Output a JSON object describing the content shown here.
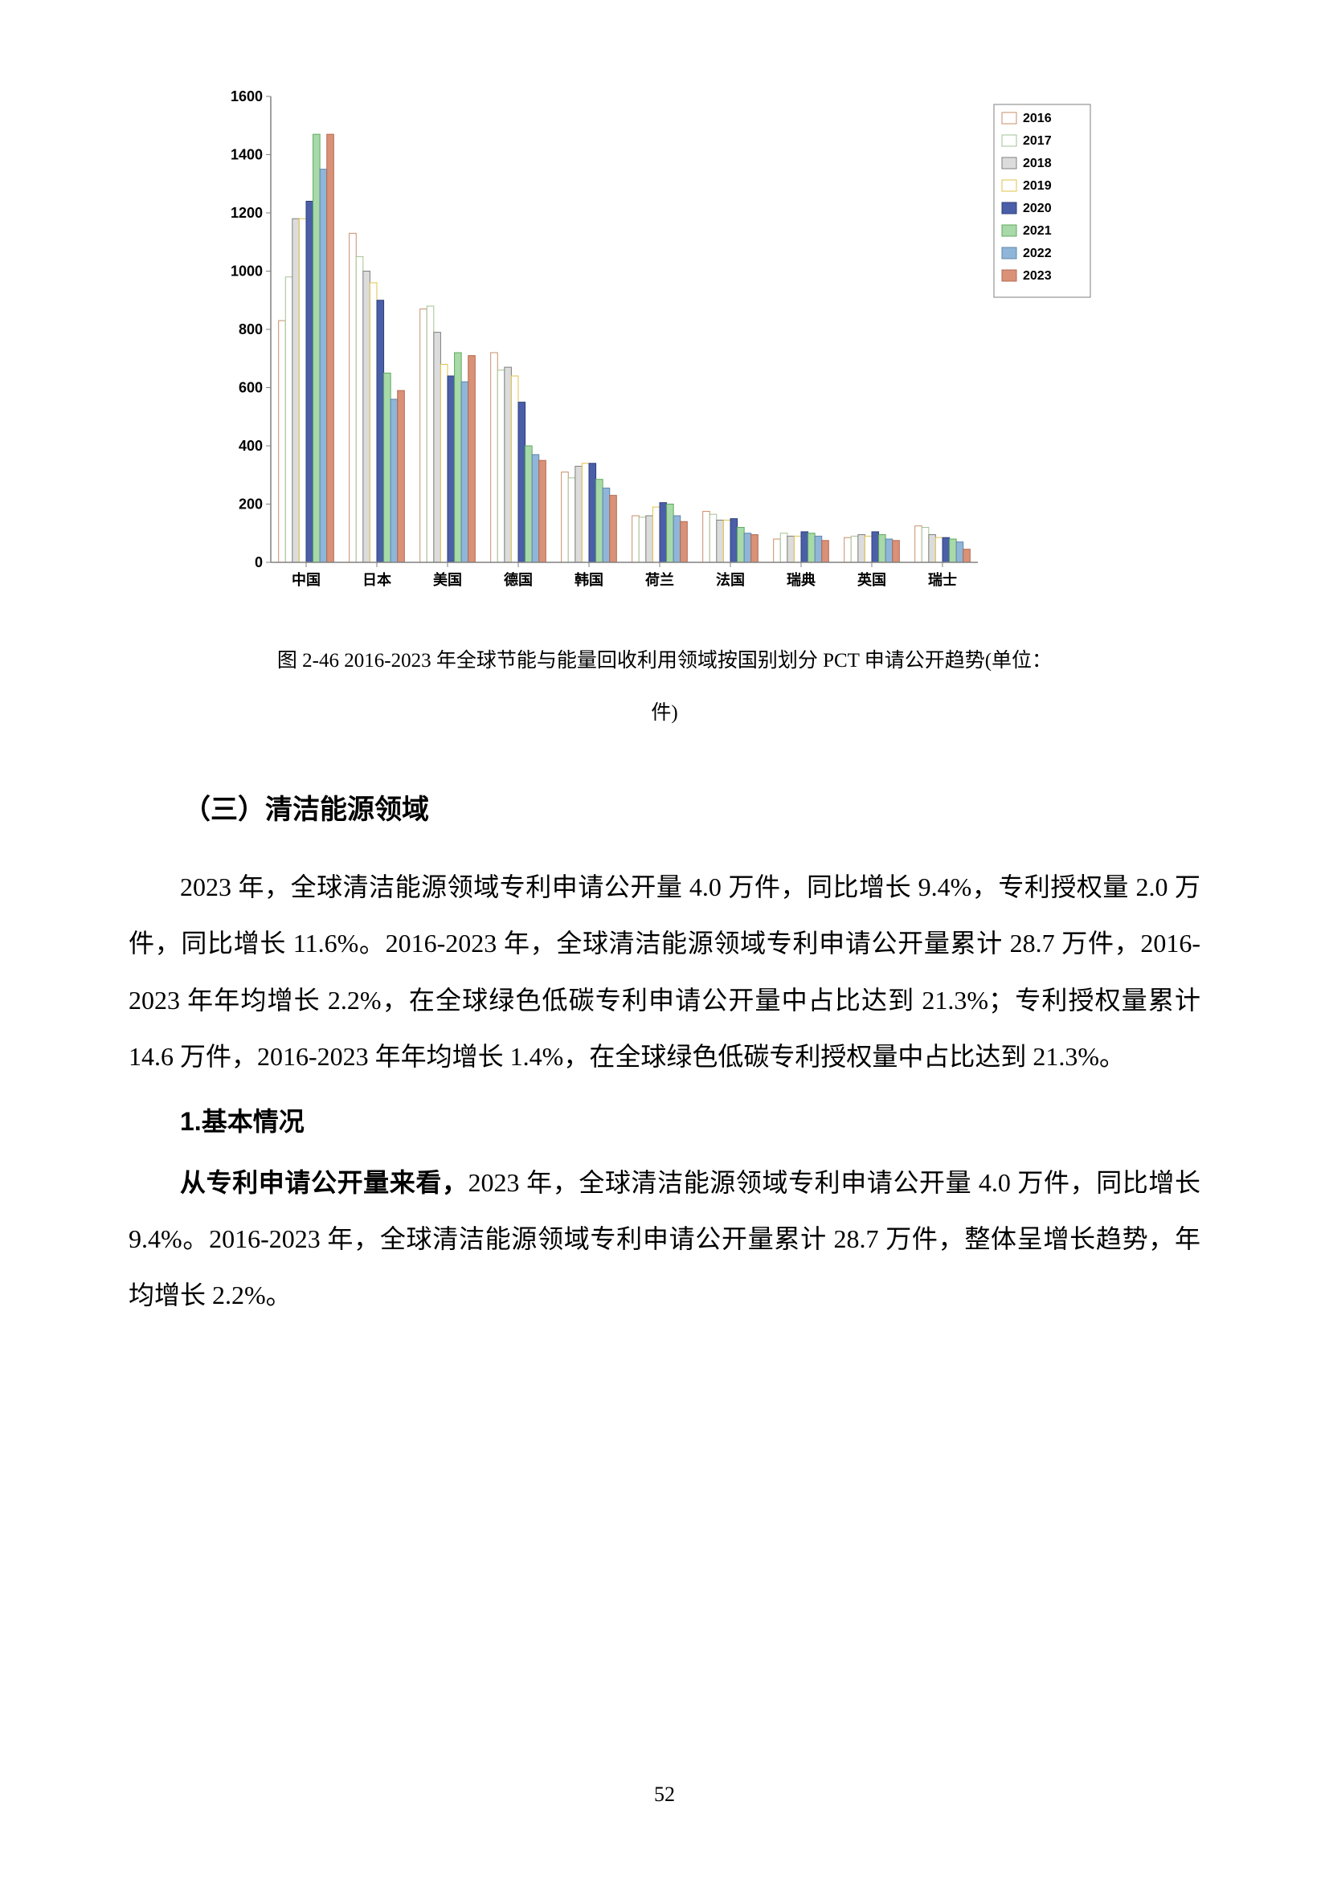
{
  "chart": {
    "type": "bar",
    "ylim": [
      0,
      1600
    ],
    "ytick_step": 200,
    "bar_gap": 0,
    "group_gap_ratio": 0.22,
    "plot_background": "#ffffff",
    "axis_line_color": "#808080",
    "grid_visible": false,
    "axis_fontsize": 18,
    "tick_length": 6,
    "y_axis_label_fontsize": 18,
    "categories": [
      "中国",
      "日本",
      "美国",
      "德国",
      "韩国",
      "荷兰",
      "法国",
      "瑞典",
      "英国",
      "瑞士"
    ],
    "series": [
      {
        "label": "2016",
        "fill": "#ffffff",
        "stroke": "#c78f6b",
        "hatch": "none"
      },
      {
        "label": "2017",
        "fill": "#ffffff",
        "stroke": "#a3c293",
        "hatch": "none"
      },
      {
        "label": "2018",
        "fill": "#dcdcdc",
        "stroke": "#7f7f7f",
        "hatch": "none"
      },
      {
        "label": "2019",
        "fill": "#ffffff",
        "stroke": "#e0c24a",
        "hatch": "none"
      },
      {
        "label": "2020",
        "fill": "#4a5fa8",
        "stroke": "#2f3f78",
        "hatch": "none"
      },
      {
        "label": "2021",
        "fill": "#a8d9a8",
        "stroke": "#5faa5f",
        "hatch": "none"
      },
      {
        "label": "2022",
        "fill": "#8fb6d9",
        "stroke": "#5f86a9",
        "hatch": "none"
      },
      {
        "label": "2023",
        "fill": "#d99177",
        "stroke": "#b46a50",
        "hatch": "none"
      }
    ],
    "values": [
      [
        830,
        980,
        1180,
        1180,
        1240,
        1470,
        1350,
        1470
      ],
      [
        1130,
        1050,
        1000,
        960,
        900,
        650,
        560,
        590
      ],
      [
        870,
        880,
        790,
        680,
        640,
        720,
        620,
        710
      ],
      [
        720,
        660,
        670,
        640,
        550,
        400,
        370,
        350
      ],
      [
        310,
        290,
        330,
        340,
        340,
        285,
        255,
        230
      ],
      [
        160,
        155,
        160,
        190,
        205,
        200,
        160,
        140
      ],
      [
        175,
        165,
        145,
        145,
        150,
        120,
        100,
        95
      ],
      [
        80,
        100,
        90,
        90,
        105,
        100,
        90,
        75
      ],
      [
        85,
        90,
        95,
        90,
        105,
        95,
        80,
        75
      ],
      [
        125,
        120,
        95,
        85,
        85,
        80,
        70,
        45
      ]
    ],
    "legend_border_color": "#7f7f7f",
    "legend_background": "#ffffff"
  },
  "chart_caption_1": "图 2-46 2016-2023 年全球节能与能量回收利用领域按国别划分 PCT 申请公开趋势(单位：",
  "chart_caption_2": "件)",
  "section_heading": "（三）清洁能源领域",
  "para1": "2023 年，全球清洁能源领域专利申请公开量 4.0 万件，同比增长 9.4%，专利授权量 2.0 万件，同比增长 11.6%。2016-2023 年，全球清洁能源领域专利申请公开量累计 28.7 万件，2016-2023 年年均增长 2.2%，在全球绿色低碳专利申请公开量中占比达到 21.3%；专利授权量累计 14.6 万件，2016-2023 年年均增长 1.4%，在全球绿色低碳专利授权量中占比达到 21.3%。",
  "sub_heading": "1.基本情况",
  "para2_bold": "从专利申请公开量来看，",
  "para2_rest": "2023 年，全球清洁能源领域专利申请公开量 4.0 万件，同比增长 9.4%。2016-2023 年，全球清洁能源领域专利申请公开量累计 28.7 万件，整体呈增长趋势，年均增长 2.2%。",
  "page_number": "52"
}
